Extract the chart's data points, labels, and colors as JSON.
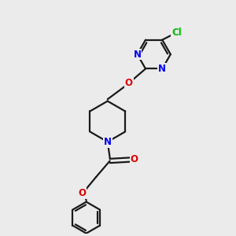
{
  "background_color": "#ebebeb",
  "bond_color": "#1a1a1a",
  "bond_width": 1.6,
  "atom_colors": {
    "N": "#0000ee",
    "O": "#dd0000",
    "Cl": "#00bb00",
    "C": "#1a1a1a"
  },
  "font_size": 8.5,
  "figsize": [
    3.0,
    3.0
  ],
  "dpi": 100
}
